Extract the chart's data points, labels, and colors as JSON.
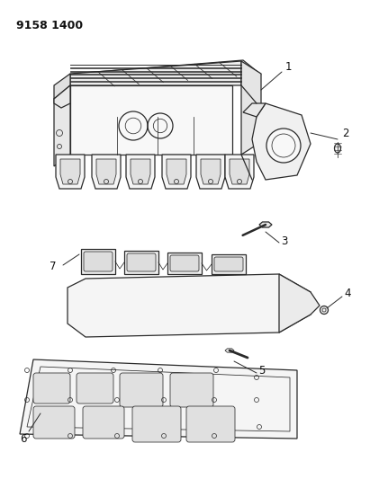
{
  "title": "9158 1400",
  "background_color": "#ffffff",
  "line_color": "#2a2a2a",
  "label_color": "#111111",
  "fig_width": 4.11,
  "fig_height": 5.33,
  "dpi": 100,
  "title_fontsize": 9,
  "label_fontsize": 8.5
}
